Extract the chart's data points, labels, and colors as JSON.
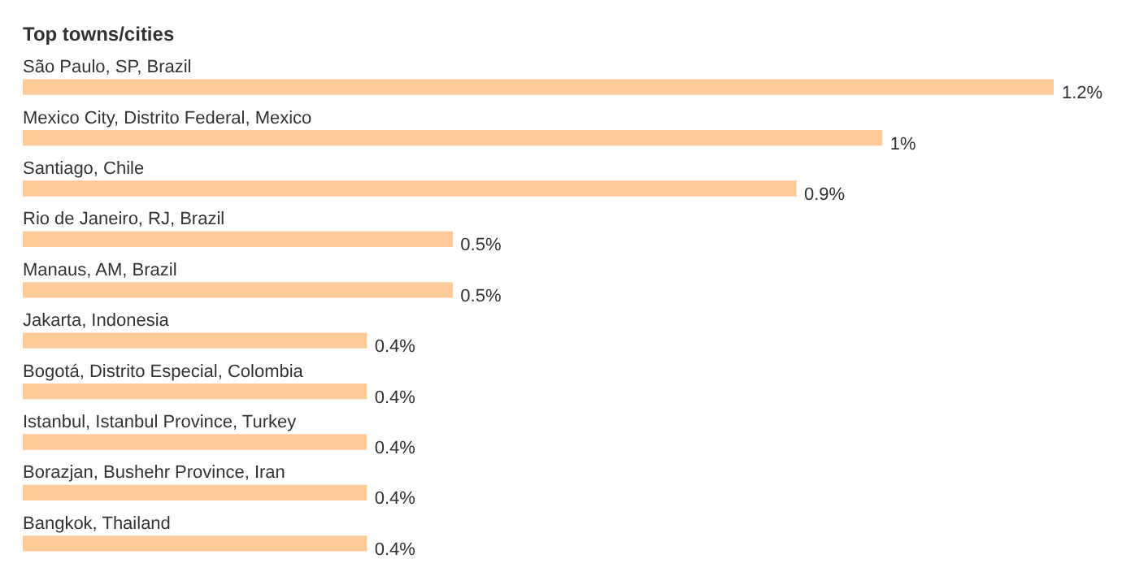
{
  "chart_data": {
    "type": "bar",
    "orientation": "horizontal",
    "title": "Top towns/cities",
    "categories": [
      "São Paulo, SP, Brazil",
      "Mexico City, Distrito Federal, Mexico",
      "Santiago, Chile",
      "Rio de Janeiro, RJ, Brazil",
      "Manaus, AM, Brazil",
      "Jakarta, Indonesia",
      "Bogotá, Distrito Especial, Colombia",
      "Istanbul, Istanbul Province, Turkey",
      "Borazjan, Bushehr Province, Iran",
      "Bangkok, Thailand"
    ],
    "values": [
      1.2,
      1,
      0.9,
      0.5,
      0.5,
      0.4,
      0.4,
      0.4,
      0.4,
      0.4
    ],
    "value_labels": [
      "1.2%",
      "1%",
      "0.9%",
      "0.5%",
      "0.5%",
      "0.4%",
      "0.4%",
      "0.4%",
      "0.4%",
      "0.4%"
    ],
    "color": "#fecb98"
  }
}
